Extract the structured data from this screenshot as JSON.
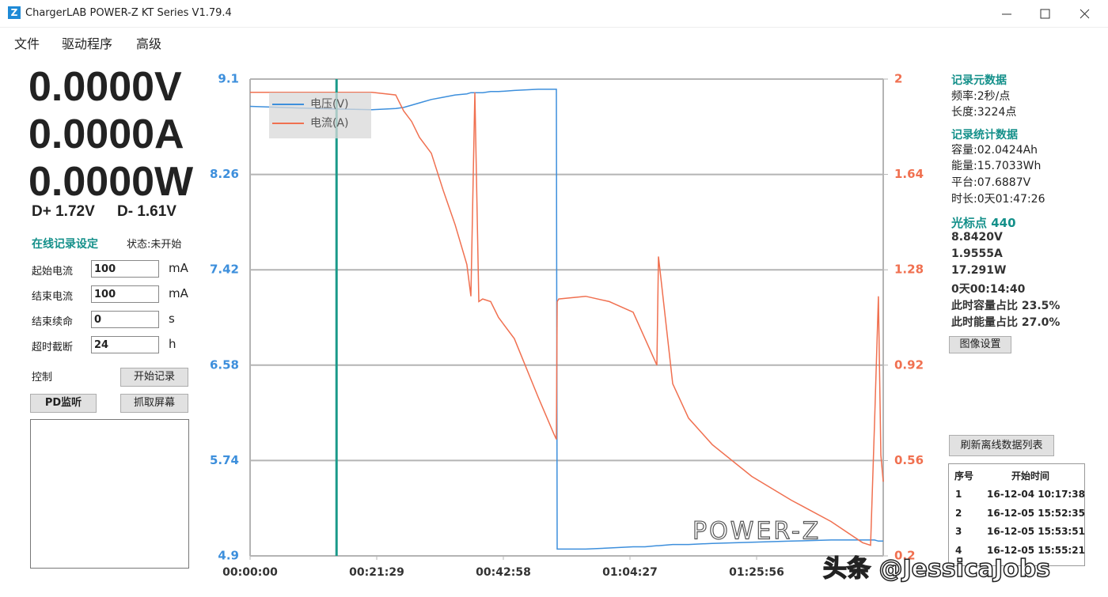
{
  "window": {
    "title": "ChargerLAB POWER-Z KT Series V1.79.4"
  },
  "menu": [
    "文件",
    "驱动程序",
    "高级"
  ],
  "readings": {
    "voltage": "0.0000V",
    "current": "0.0000A",
    "power": "0.0000W",
    "dplus": "D+ 1.72V",
    "dminus": "D- 1.61V"
  },
  "record_settings": {
    "title": "在线记录设定",
    "status": "状态:未开始",
    "fields": [
      {
        "label": "起始电流",
        "value": "100",
        "unit": "mA"
      },
      {
        "label": "结束电流",
        "value": "100",
        "unit": "mA"
      },
      {
        "label": "结束续命",
        "value": "0",
        "unit": "s"
      },
      {
        "label": "超时截断",
        "value": "24",
        "unit": "h"
      }
    ]
  },
  "controls": {
    "label": "控制",
    "start": "开始记录",
    "pd": "PD监听",
    "capture": "抓取屏幕"
  },
  "chart_data": {
    "type": "line",
    "x": [
      0,
      677,
      1241,
      1482,
      1563,
      1644,
      1724,
      1845,
      1966,
      2087,
      2207,
      2248,
      2288,
      2328,
      2368,
      2449,
      2529,
      2690,
      2932,
      3093,
      3118,
      3126,
      3142,
      3416,
      3657,
      3899,
      4020,
      4141,
      4157,
      4302,
      4463,
      4705,
      5107,
      5510,
      5913,
      6235,
      6316,
      6356,
      6396,
      6421,
      6445
    ],
    "series": [
      {
        "name": "电压(V)",
        "color": "#3d8fdc",
        "values": [
          8.86,
          8.84,
          8.83,
          8.84,
          8.85,
          8.87,
          8.89,
          8.92,
          8.94,
          8.96,
          8.97,
          8.98,
          8.98,
          8.98,
          8.98,
          8.99,
          8.99,
          9.0,
          9.01,
          9.01,
          9.01,
          4.96,
          4.96,
          4.96,
          4.97,
          4.98,
          4.98,
          4.99,
          4.99,
          5.0,
          5.0,
          5.01,
          5.02,
          5.03,
          5.04,
          5.04,
          5.04,
          5.04,
          5.03,
          5.03,
          5.03
        ]
      },
      {
        "name": "电流(A)",
        "color": "#f07050",
        "axis": "y2",
        "values": [
          1.95,
          1.95,
          1.95,
          1.94,
          1.88,
          1.84,
          1.78,
          1.72,
          1.58,
          1.45,
          1.3,
          1.18,
          1.95,
          1.16,
          1.17,
          1.16,
          1.1,
          1.02,
          0.8,
          0.66,
          0.64,
          1.16,
          1.17,
          1.18,
          1.16,
          1.12,
          1.02,
          0.92,
          1.33,
          0.85,
          0.72,
          0.62,
          0.5,
          0.41,
          0.33,
          0.25,
          0.24,
          0.7,
          1.18,
          0.58,
          0.48
        ]
      }
    ],
    "xlim": [
      0,
      6445
    ],
    "xticks": [
      {
        "value": 0,
        "label": "00:00:00"
      },
      {
        "value": 1289,
        "label": "00:21:29"
      },
      {
        "value": 2578,
        "label": "00:42:58"
      },
      {
        "value": 3867,
        "label": "01:04:27"
      },
      {
        "value": 5156,
        "label": "01:25:56"
      }
    ],
    "ylim": [
      4.9,
      9.1
    ],
    "yticks": [
      4.9,
      5.74,
      6.58,
      7.42,
      8.26,
      9.1
    ],
    "y2lim": [
      0.2,
      2
    ],
    "y2ticks": [
      0.2,
      0.56,
      0.92,
      1.28,
      1.64,
      2
    ],
    "grid": true,
    "legend": "top-left",
    "cursor": 880,
    "cursor_color": "#1a9a8a"
  },
  "info": {
    "meta_title": "记录元数据",
    "rate": "频率:2秒/点",
    "length": "长度:3224点",
    "stats_title": "记录统计数据",
    "capacity": "容量:02.0424Ah",
    "energy": "能量:15.7033Wh",
    "plateau": "平台:07.6887V",
    "duration": "时长:0天01:47:26",
    "cursor_title": "光标点 440",
    "cursor_lines": [
      "8.8420V",
      "1.9555A",
      "17.291W",
      "0天00:14:40",
      "此时容量占比 23.5%",
      "此时能量占比 27.0%"
    ],
    "image_button": "图像设置",
    "refresh_button": "刷新离线数据列表"
  },
  "table": {
    "headers": [
      "序号",
      "开始时间"
    ],
    "rows": [
      [
        "1",
        "16-12-04 10:17:38"
      ],
      [
        "2",
        "16-12-05 15:52:35"
      ],
      [
        "3",
        "16-12-05 15:53:51"
      ],
      [
        "4",
        "16-12-05 15:55:21"
      ]
    ]
  },
  "watermark": {
    "logo": "POWER-Z",
    "credit": "头条 @JessicaJobs"
  }
}
